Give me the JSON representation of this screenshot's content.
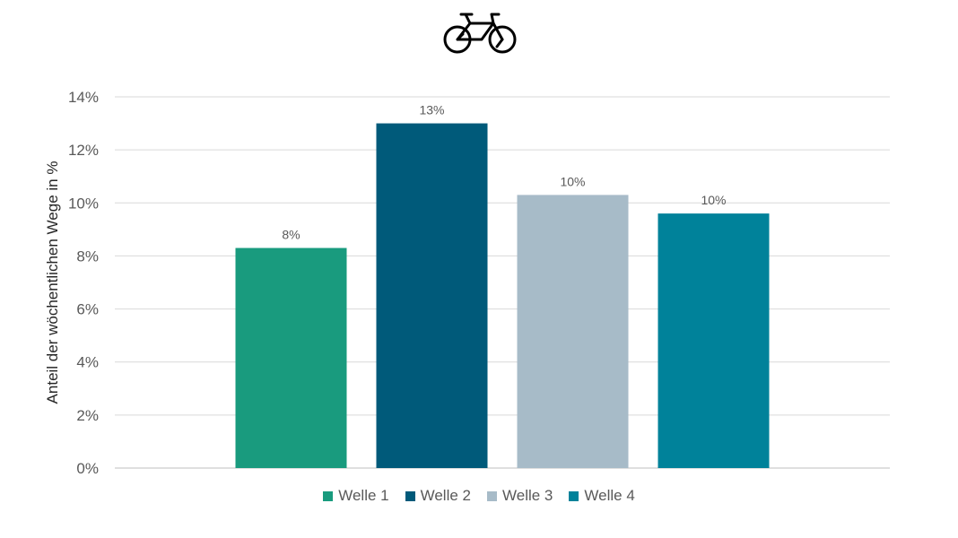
{
  "chart_data": {
    "type": "bar",
    "title_icon": "bicycle-icon",
    "categories": [
      "Welle 1",
      "Welle 2",
      "Welle 3",
      "Welle 4"
    ],
    "values": [
      8.3,
      13.0,
      10.3,
      9.6
    ],
    "data_labels": [
      "8%",
      "13%",
      "10%",
      "10%"
    ],
    "colors": [
      "#199b7e",
      "#005a7a",
      "#a7bbc8",
      "#00829a"
    ],
    "ylabel": "Anteil der wöchentlichen Wege in %",
    "ylim": [
      0,
      14
    ],
    "yticks": [
      0,
      2,
      4,
      6,
      8,
      10,
      12,
      14
    ],
    "ytick_labels": [
      "0%",
      "2%",
      "4%",
      "6%",
      "8%",
      "10%",
      "12%",
      "14%"
    ],
    "grid": true,
    "legend_position": "bottom",
    "legend": [
      "Welle 1",
      "Welle 2",
      "Welle 3",
      "Welle 4"
    ]
  }
}
